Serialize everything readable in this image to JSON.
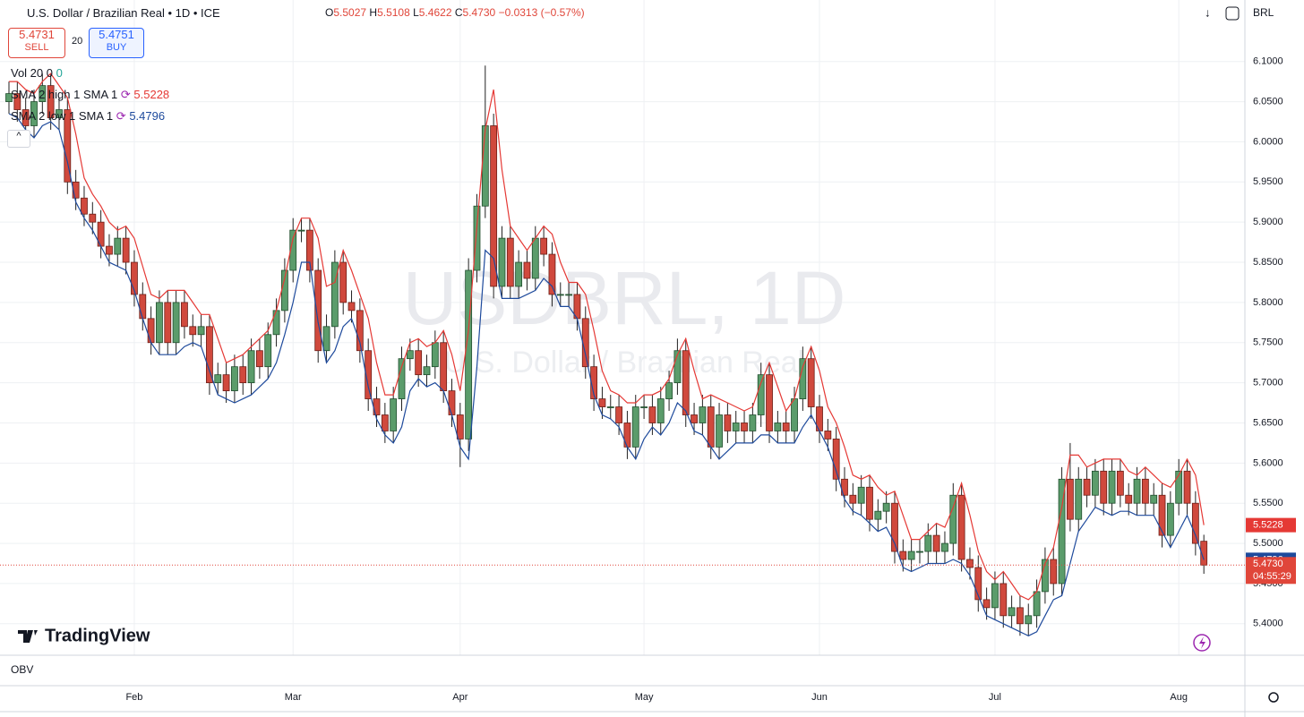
{
  "ui": {
    "symbol": "U.S. Dollar / Brazilian Real • 1D • ICE",
    "ohlc": {
      "o_label": "O",
      "o": "5.5027",
      "h_label": "H",
      "h": "5.5108",
      "l_label": "L",
      "l": "5.4622",
      "c_label": "C",
      "c": "5.4730",
      "change": "−0.0313 (−0.57%)"
    },
    "sell_price": "5.4731",
    "sell": "SELL",
    "spread": "20",
    "buy_price": "5.4751",
    "buy": "BUY",
    "vol": "Vol 20",
    "vol_a": "0",
    "vol_b": "0",
    "currency": "BRL",
    "watermark": "USDBRL, 1D",
    "watermark_sub": "U.S. Dollar / Brazilian Real",
    "logo": "TradingView",
    "countdown": "04:55:29",
    "obv": "OBV"
  },
  "chart_data": {
    "type": "candlestick",
    "grid": true,
    "up_color": "#5b9c6b",
    "down_color": "#d0493d",
    "last_line_color": "#e0463a",
    "ylim": [
      5.363,
      6.171
    ],
    "yticks": [
      {
        "value": 5.4,
        "label": "5.4000"
      },
      {
        "value": 5.45,
        "label": "5.4500"
      },
      {
        "value": 5.5,
        "label": "5.5000"
      },
      {
        "value": 5.55,
        "label": "5.5500"
      },
      {
        "value": 5.6,
        "label": "5.6000"
      },
      {
        "value": 5.65,
        "label": "5.6500"
      },
      {
        "value": 5.7,
        "label": "5.7000"
      },
      {
        "value": 5.75,
        "label": "5.7500"
      },
      {
        "value": 5.8,
        "label": "5.8000"
      },
      {
        "value": 5.85,
        "label": "5.8500"
      },
      {
        "value": 5.9,
        "label": "5.9000"
      },
      {
        "value": 5.95,
        "label": "5.9500"
      },
      {
        "value": 6.0,
        "label": "6.0000"
      },
      {
        "value": 6.05,
        "label": "6.0500"
      },
      {
        "value": 6.1,
        "label": "6.1000"
      }
    ],
    "categories": [
      null,
      null,
      null,
      null,
      null,
      null,
      null,
      null,
      null,
      null,
      null,
      null,
      null,
      null,
      null,
      "Feb",
      null,
      null,
      null,
      null,
      null,
      null,
      null,
      null,
      null,
      null,
      null,
      null,
      null,
      null,
      null,
      null,
      null,
      null,
      "Mar",
      null,
      null,
      null,
      null,
      null,
      null,
      null,
      null,
      null,
      null,
      null,
      null,
      null,
      null,
      null,
      null,
      null,
      null,
      null,
      "Apr",
      null,
      null,
      null,
      null,
      null,
      null,
      null,
      null,
      null,
      null,
      null,
      null,
      null,
      null,
      null,
      null,
      null,
      null,
      null,
      null,
      null,
      "May",
      null,
      null,
      null,
      null,
      null,
      null,
      null,
      null,
      null,
      null,
      null,
      null,
      null,
      null,
      null,
      null,
      null,
      null,
      null,
      null,
      "Jun",
      null,
      null,
      null,
      null,
      null,
      null,
      null,
      null,
      null,
      null,
      null,
      null,
      null,
      null,
      null,
      null,
      null,
      null,
      null,
      null,
      "Jul",
      null,
      null,
      null,
      null,
      null,
      null,
      null,
      null,
      null,
      null,
      null,
      null,
      null,
      null,
      null,
      null,
      null,
      null,
      null,
      null,
      null,
      "Aug",
      null,
      null,
      null
    ],
    "open": [
      6.05,
      6.06,
      6.04,
      6.02,
      6.05,
      6.07,
      6.03,
      6.04,
      5.95,
      5.93,
      5.91,
      5.9,
      5.87,
      5.86,
      5.88,
      5.85,
      5.81,
      5.78,
      5.75,
      5.8,
      5.75,
      5.8,
      5.77,
      5.76,
      5.77,
      5.7,
      5.71,
      5.69,
      5.72,
      5.7,
      5.74,
      5.72,
      5.76,
      5.79,
      5.84,
      5.89,
      5.89,
      5.84,
      5.74,
      5.77,
      5.85,
      5.8,
      5.79,
      5.74,
      5.68,
      5.66,
      5.64,
      5.68,
      5.73,
      5.74,
      5.71,
      5.72,
      5.75,
      5.69,
      5.66,
      5.63,
      5.84,
      5.92,
      6.02,
      5.82,
      5.88,
      5.82,
      5.85,
      5.83,
      5.88,
      5.86,
      5.81,
      5.81,
      5.81,
      5.78,
      5.72,
      5.68,
      5.67,
      5.67,
      5.65,
      5.62,
      5.67,
      5.67,
      5.65,
      5.68,
      5.7,
      5.74,
      5.66,
      5.65,
      5.67,
      5.62,
      5.66,
      5.64,
      5.65,
      5.64,
      5.66,
      5.71,
      5.64,
      5.65,
      5.64,
      5.68,
      5.73,
      5.67,
      5.64,
      5.63,
      5.58,
      5.56,
      5.55,
      5.57,
      5.53,
      5.54,
      5.55,
      5.49,
      5.48,
      5.49,
      5.49,
      5.51,
      5.49,
      5.5,
      5.56,
      5.48,
      5.47,
      5.43,
      5.42,
      5.45,
      5.41,
      5.42,
      5.4,
      5.41,
      5.44,
      5.48,
      5.45,
      5.58,
      5.53,
      5.58,
      5.56,
      5.59,
      5.55,
      5.59,
      5.56,
      5.55,
      5.58,
      5.55,
      5.56,
      5.51,
      5.55,
      5.59,
      5.55,
      5.5027
    ],
    "high": [
      6.075,
      6.075,
      6.055,
      6.065,
      6.085,
      6.085,
      6.055,
      6.055,
      5.965,
      5.945,
      5.925,
      5.915,
      5.885,
      5.895,
      5.895,
      5.865,
      5.825,
      5.795,
      5.815,
      5.815,
      5.815,
      5.815,
      5.785,
      5.785,
      5.785,
      5.725,
      5.725,
      5.735,
      5.735,
      5.755,
      5.755,
      5.775,
      5.805,
      5.855,
      5.905,
      5.905,
      5.905,
      5.855,
      5.785,
      5.865,
      5.865,
      5.815,
      5.805,
      5.755,
      5.695,
      5.675,
      5.695,
      5.745,
      5.755,
      5.755,
      5.735,
      5.765,
      5.765,
      5.705,
      5.675,
      5.855,
      5.935,
      6.095,
      6.035,
      5.895,
      5.895,
      5.865,
      5.865,
      5.895,
      5.895,
      5.875,
      5.825,
      5.825,
      5.825,
      5.795,
      5.735,
      5.695,
      5.685,
      5.685,
      5.665,
      5.685,
      5.685,
      5.685,
      5.695,
      5.715,
      5.755,
      5.755,
      5.675,
      5.685,
      5.685,
      5.675,
      5.675,
      5.665,
      5.665,
      5.675,
      5.725,
      5.725,
      5.665,
      5.665,
      5.695,
      5.745,
      5.745,
      5.685,
      5.655,
      5.645,
      5.595,
      5.575,
      5.585,
      5.585,
      5.555,
      5.565,
      5.565,
      5.505,
      5.505,
      5.505,
      5.525,
      5.525,
      5.515,
      5.575,
      5.575,
      5.495,
      5.485,
      5.445,
      5.465,
      5.465,
      5.435,
      5.435,
      5.425,
      5.455,
      5.495,
      5.495,
      5.595,
      5.625,
      5.595,
      5.595,
      5.605,
      5.605,
      5.605,
      5.605,
      5.575,
      5.595,
      5.595,
      5.575,
      5.575,
      5.565,
      5.605,
      5.605,
      5.565,
      5.5108
    ],
    "low": [
      6.035,
      6.025,
      6.005,
      6.005,
      6.035,
      6.015,
      6.015,
      5.935,
      5.915,
      5.895,
      5.885,
      5.855,
      5.845,
      5.845,
      5.835,
      5.795,
      5.765,
      5.735,
      5.735,
      5.735,
      5.735,
      5.755,
      5.745,
      5.745,
      5.685,
      5.685,
      5.675,
      5.675,
      5.685,
      5.685,
      5.705,
      5.705,
      5.745,
      5.775,
      5.825,
      5.875,
      5.825,
      5.725,
      5.725,
      5.755,
      5.785,
      5.775,
      5.725,
      5.665,
      5.645,
      5.625,
      5.625,
      5.665,
      5.715,
      5.695,
      5.695,
      5.705,
      5.675,
      5.645,
      5.595,
      5.615,
      5.825,
      5.905,
      5.805,
      5.805,
      5.805,
      5.805,
      5.815,
      5.815,
      5.845,
      5.795,
      5.795,
      5.795,
      5.765,
      5.705,
      5.665,
      5.655,
      5.655,
      5.635,
      5.605,
      5.605,
      5.655,
      5.635,
      5.635,
      5.665,
      5.685,
      5.645,
      5.635,
      5.635,
      5.605,
      5.605,
      5.625,
      5.625,
      5.625,
      5.625,
      5.645,
      5.625,
      5.625,
      5.625,
      5.625,
      5.665,
      5.655,
      5.625,
      5.615,
      5.565,
      5.545,
      5.535,
      5.535,
      5.515,
      5.515,
      5.525,
      5.475,
      5.465,
      5.465,
      5.475,
      5.475,
      5.475,
      5.475,
      5.485,
      5.465,
      5.455,
      5.415,
      5.405,
      5.405,
      5.395,
      5.395,
      5.385,
      5.385,
      5.395,
      5.425,
      5.435,
      5.435,
      5.515,
      5.515,
      5.545,
      5.545,
      5.535,
      5.535,
      5.545,
      5.535,
      5.535,
      5.535,
      5.535,
      5.495,
      5.495,
      5.535,
      5.535,
      5.485,
      5.4622
    ],
    "close": [
      6.06,
      6.04,
      6.02,
      6.05,
      6.07,
      6.03,
      6.04,
      5.95,
      5.93,
      5.91,
      5.9,
      5.87,
      5.86,
      5.88,
      5.85,
      5.81,
      5.78,
      5.75,
      5.8,
      5.75,
      5.8,
      5.77,
      5.76,
      5.77,
      5.7,
      5.71,
      5.69,
      5.72,
      5.7,
      5.74,
      5.72,
      5.76,
      5.79,
      5.84,
      5.89,
      5.89,
      5.84,
      5.74,
      5.77,
      5.85,
      5.8,
      5.79,
      5.74,
      5.68,
      5.66,
      5.64,
      5.68,
      5.73,
      5.74,
      5.71,
      5.72,
      5.75,
      5.69,
      5.66,
      5.63,
      5.84,
      5.92,
      6.02,
      5.82,
      5.88,
      5.82,
      5.85,
      5.83,
      5.88,
      5.86,
      5.81,
      5.81,
      5.81,
      5.78,
      5.72,
      5.68,
      5.67,
      5.67,
      5.65,
      5.62,
      5.67,
      5.67,
      5.65,
      5.68,
      5.7,
      5.74,
      5.66,
      5.65,
      5.67,
      5.62,
      5.66,
      5.64,
      5.65,
      5.64,
      5.66,
      5.71,
      5.64,
      5.65,
      5.64,
      5.68,
      5.73,
      5.67,
      5.64,
      5.63,
      5.58,
      5.56,
      5.55,
      5.57,
      5.53,
      5.54,
      5.55,
      5.49,
      5.48,
      5.49,
      5.49,
      5.51,
      5.49,
      5.5,
      5.56,
      5.48,
      5.47,
      5.43,
      5.42,
      5.45,
      5.41,
      5.42,
      5.4,
      5.41,
      5.44,
      5.48,
      5.45,
      5.58,
      5.53,
      5.58,
      5.56,
      5.59,
      5.55,
      5.59,
      5.56,
      5.55,
      5.58,
      5.55,
      5.56,
      5.51,
      5.55,
      5.59,
      5.55,
      5.5,
      5.473
    ],
    "series": [
      {
        "name": "SMA 2 high 1 SMA 1",
        "color": "#e53935",
        "values": [
          6.075,
          6.075,
          6.065,
          6.06,
          6.075,
          6.085,
          6.07,
          6.055,
          6.01,
          5.955,
          5.935,
          5.92,
          5.9,
          5.89,
          5.895,
          5.88,
          5.845,
          5.81,
          5.805,
          5.815,
          5.815,
          5.815,
          5.8,
          5.785,
          5.785,
          5.755,
          5.725,
          5.73,
          5.735,
          5.745,
          5.755,
          5.765,
          5.79,
          5.83,
          5.88,
          5.905,
          5.905,
          5.88,
          5.82,
          5.825,
          5.865,
          5.84,
          5.81,
          5.78,
          5.725,
          5.685,
          5.685,
          5.72,
          5.75,
          5.755,
          5.745,
          5.75,
          5.765,
          5.735,
          5.69,
          5.765,
          5.895,
          6.015,
          6.065,
          5.965,
          5.895,
          5.88,
          5.865,
          5.88,
          5.895,
          5.885,
          5.85,
          5.825,
          5.825,
          5.81,
          5.765,
          5.715,
          5.69,
          5.685,
          5.675,
          5.675,
          5.685,
          5.685,
          5.69,
          5.705,
          5.735,
          5.755,
          5.715,
          5.68,
          5.685,
          5.68,
          5.675,
          5.67,
          5.665,
          5.67,
          5.7,
          5.725,
          5.695,
          5.665,
          5.68,
          5.72,
          5.745,
          5.715,
          5.67,
          5.65,
          5.62,
          5.585,
          5.58,
          5.585,
          5.57,
          5.56,
          5.565,
          5.535,
          5.505,
          5.505,
          5.515,
          5.525,
          5.52,
          5.545,
          5.575,
          5.535,
          5.49,
          5.465,
          5.455,
          5.465,
          5.45,
          5.435,
          5.43,
          5.44,
          5.475,
          5.495,
          5.545,
          5.61,
          5.61,
          5.595,
          5.6,
          5.605,
          5.605,
          5.605,
          5.59,
          5.585,
          5.595,
          5.585,
          5.575,
          5.57,
          5.585,
          5.605,
          5.585,
          5.5228
        ]
      },
      {
        "name": "SMA 2 low 1 SMA 1",
        "color": "#1e4a9c",
        "values": [
          6.035,
          6.03,
          6.015,
          6.005,
          6.02,
          6.025,
          6.015,
          5.975,
          5.925,
          5.905,
          5.89,
          5.87,
          5.85,
          5.845,
          5.84,
          5.815,
          5.78,
          5.75,
          5.735,
          5.735,
          5.735,
          5.745,
          5.75,
          5.745,
          5.715,
          5.685,
          5.68,
          5.675,
          5.68,
          5.685,
          5.695,
          5.705,
          5.725,
          5.76,
          5.8,
          5.85,
          5.85,
          5.775,
          5.725,
          5.74,
          5.77,
          5.78,
          5.75,
          5.695,
          5.655,
          5.635,
          5.625,
          5.645,
          5.69,
          5.705,
          5.695,
          5.7,
          5.69,
          5.66,
          5.62,
          5.605,
          5.72,
          5.865,
          5.855,
          5.805,
          5.805,
          5.805,
          5.81,
          5.815,
          5.83,
          5.82,
          5.795,
          5.795,
          5.78,
          5.735,
          5.685,
          5.66,
          5.655,
          5.645,
          5.62,
          5.605,
          5.63,
          5.645,
          5.635,
          5.65,
          5.675,
          5.665,
          5.64,
          5.635,
          5.62,
          5.605,
          5.615,
          5.625,
          5.625,
          5.625,
          5.635,
          5.635,
          5.625,
          5.625,
          5.625,
          5.645,
          5.66,
          5.64,
          5.62,
          5.59,
          5.555,
          5.54,
          5.535,
          5.525,
          5.515,
          5.52,
          5.5,
          5.47,
          5.465,
          5.47,
          5.475,
          5.475,
          5.475,
          5.48,
          5.475,
          5.46,
          5.435,
          5.41,
          5.405,
          5.4,
          5.395,
          5.39,
          5.385,
          5.39,
          5.41,
          5.43,
          5.435,
          5.475,
          5.515,
          5.53,
          5.545,
          5.54,
          5.535,
          5.54,
          5.54,
          5.535,
          5.535,
          5.535,
          5.515,
          5.495,
          5.515,
          5.535,
          5.51,
          5.4796
        ]
      }
    ]
  }
}
